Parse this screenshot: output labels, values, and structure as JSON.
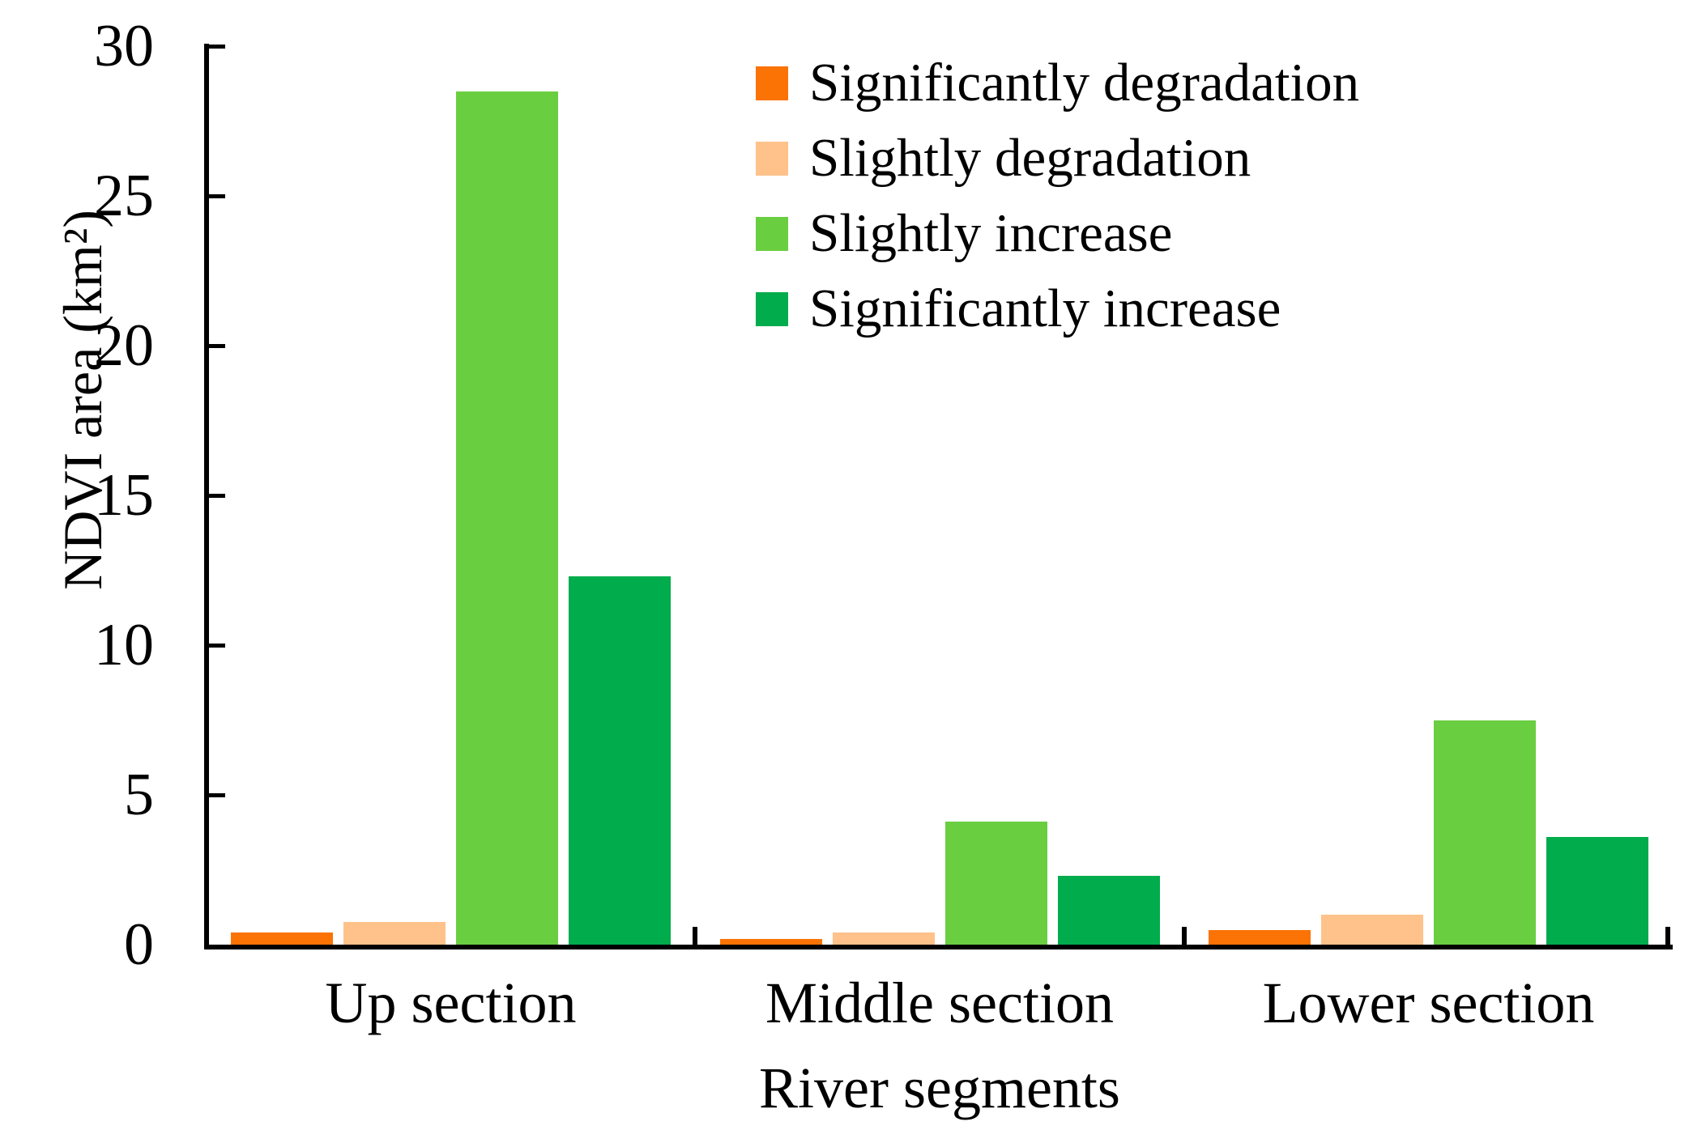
{
  "chart_data": {
    "type": "bar",
    "categories": [
      "Up section",
      "Middle section",
      "Lower section"
    ],
    "series": [
      {
        "name": "Significantly degradation",
        "color": "#FB7304",
        "values": [
          0.4,
          0.2,
          0.5
        ]
      },
      {
        "name": "Slightly degradation",
        "color": "#FEC28A",
        "values": [
          0.75,
          0.4,
          1.0
        ]
      },
      {
        "name": "Slightly increase",
        "color": "#6ACE41",
        "values": [
          28.5,
          4.1,
          7.5
        ]
      },
      {
        "name": "Significantly increase",
        "color": "#00AC4B",
        "values": [
          12.3,
          2.3,
          3.6
        ]
      }
    ],
    "xlabel": "River segments",
    "ylabel": "NDVI area (km²)",
    "ylim": [
      0,
      30
    ],
    "yticks": [
      0,
      5,
      10,
      15,
      20,
      25,
      30
    ],
    "grid": false,
    "legend_position": "upper-right-inside",
    "axis_color": "#000000",
    "background_color": "#ffffff"
  }
}
